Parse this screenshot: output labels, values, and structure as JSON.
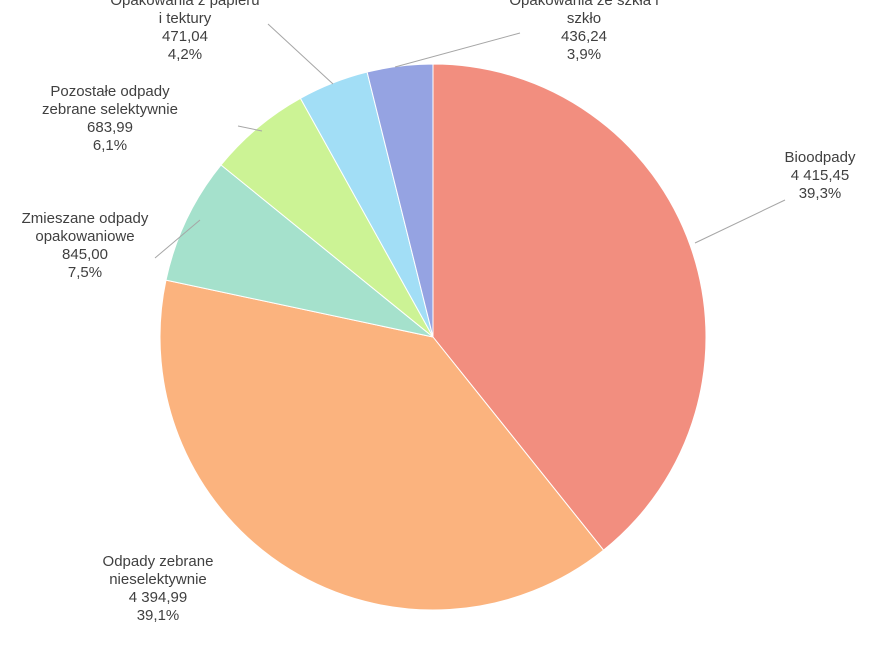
{
  "chart_data": {
    "type": "pie",
    "title": "",
    "slices": [
      {
        "name": "Bioodpady",
        "label_lines": [
          "Bioodpady"
        ],
        "value": 4415.45,
        "value_text": "4 415,45",
        "percent": 39.3,
        "percent_text": "39,3%",
        "color": "#f28e7f"
      },
      {
        "name": "Odpady zebrane nieselektywnie",
        "label_lines": [
          "Odpady zebrane",
          "nieselektywnie"
        ],
        "value": 4394.99,
        "value_text": "4 394,99",
        "percent": 39.1,
        "percent_text": "39,1%",
        "color": "#fbb37e"
      },
      {
        "name": "Zmieszane odpady opakowaniowe",
        "label_lines": [
          "Zmieszane odpady",
          "opakowaniowe"
        ],
        "value": 845.0,
        "value_text": "845,00",
        "percent": 7.5,
        "percent_text": "7,5%",
        "color": "#a5e1cc"
      },
      {
        "name": "Pozostałe odpady zebrane selektywnie",
        "label_lines": [
          "Pozostałe odpady",
          "zebrane selektywnie"
        ],
        "value": 683.99,
        "value_text": "683,99",
        "percent": 6.1,
        "percent_text": "6,1%",
        "color": "#ccf395"
      },
      {
        "name": "Opakowania z papieru i tektury",
        "label_lines": [
          "Opakowania z papieru",
          "i tektury"
        ],
        "value": 471.04,
        "value_text": "471,04",
        "percent": 4.2,
        "percent_text": "4,2%",
        "color": "#a2def6"
      },
      {
        "name": "Opakowania ze szkła i szkło",
        "label_lines": [
          "Opakowania ze szkła i",
          "szkło"
        ],
        "value": 436.24,
        "value_text": "436,24",
        "percent": 3.9,
        "percent_text": "3,9%",
        "color": "#95a3e2"
      }
    ]
  }
}
